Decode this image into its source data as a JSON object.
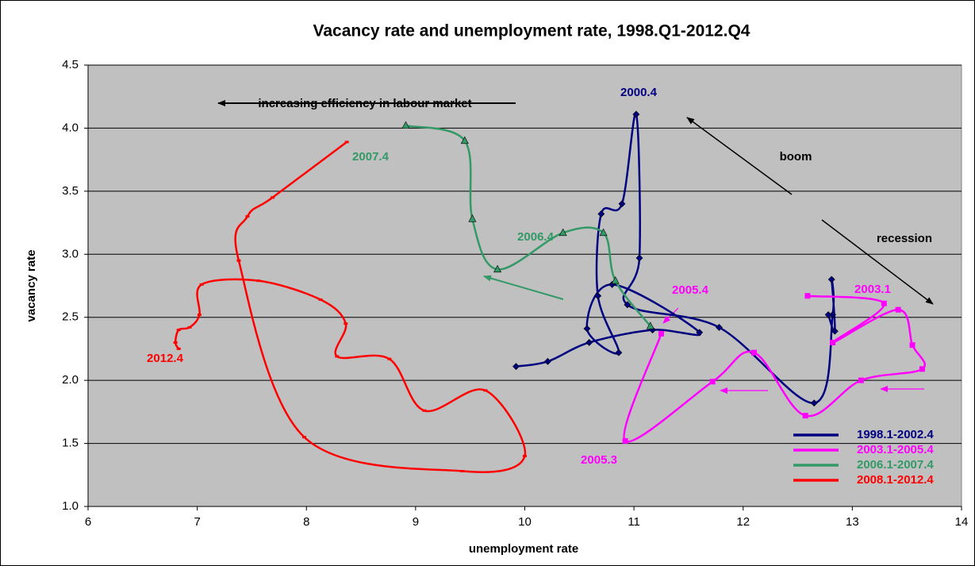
{
  "chart_data": {
    "type": "line",
    "title": "Vacancy rate and unemployment rate, 1998.Q1-2012.Q4",
    "x_label": "unemployment rate",
    "y_label": "vacancy rate",
    "xlim": [
      6,
      14
    ],
    "xticks": [
      6,
      7,
      8,
      9,
      10,
      11,
      12,
      13,
      14
    ],
    "ylim": [
      1,
      4.5
    ],
    "yticks": [
      {
        "value": 1,
        "label": "1.0"
      },
      1.5,
      {
        "value": 2,
        "label": "2.0"
      },
      2.5,
      {
        "value": 3,
        "label": "3.0"
      },
      3.5,
      {
        "value": 4,
        "label": "4.0"
      },
      4.5
    ],
    "grid": true,
    "smooth": true,
    "legend": "lower right",
    "background": "#c0c0c0",
    "series": [
      {
        "name": "1998.1-2002.4",
        "color": "#000080",
        "marker": "diamond",
        "x": [
          9.92,
          10.21,
          10.59,
          11.17,
          11.6,
          10.8,
          10.57,
          10.86,
          10.67,
          10.7,
          10.89,
          11.02,
          11.05,
          10.94,
          11.78,
          12.65,
          12.82,
          12.81,
          12.84,
          12.78
        ],
        "values": [
          2.11,
          2.15,
          2.3,
          2.4,
          2.38,
          2.76,
          2.41,
          2.22,
          2.67,
          3.32,
          3.4,
          4.11,
          2.97,
          2.6,
          2.42,
          1.82,
          2.52,
          2.8,
          2.39,
          2.52
        ]
      },
      {
        "name": "2003.1-2005.4",
        "color": "#ff00ff",
        "marker": "square",
        "x": [
          12.59,
          13.29,
          12.82,
          13.42,
          13.55,
          13.64,
          13.08,
          12.57,
          12.1,
          11.72,
          10.92,
          11.25
        ],
        "values": [
          2.67,
          2.61,
          2.3,
          2.56,
          2.28,
          2.09,
          2.0,
          1.72,
          2.22,
          1.99,
          1.52,
          2.37
        ]
      },
      {
        "name": "2006.1-2007.4",
        "color": "#339966",
        "marker": "triangle",
        "x": [
          11.15,
          10.83,
          10.72,
          10.35,
          9.75,
          9.52,
          9.45,
          8.91
        ],
        "values": [
          2.43,
          2.79,
          3.17,
          3.17,
          2.88,
          3.28,
          3.9,
          4.02
        ]
      },
      {
        "name": "2008.1-2012.4",
        "color": "#ff0000",
        "marker": "dash",
        "x": [
          8.37,
          7.69,
          7.46,
          7.38,
          7.98,
          9.43,
          10.0,
          9.64,
          9.08,
          8.76,
          8.28,
          8.36,
          8.13,
          7.56,
          7.04,
          7.02,
          6.93,
          6.83,
          6.8,
          6.83
        ],
        "values": [
          3.89,
          3.45,
          3.3,
          2.95,
          1.55,
          1.28,
          1.4,
          1.92,
          1.76,
          2.17,
          2.19,
          2.45,
          2.64,
          2.79,
          2.76,
          2.52,
          2.42,
          2.4,
          2.3,
          2.25
        ]
      }
    ],
    "annotations": [
      {
        "text": "increasing efficiency in labour market",
        "color": "#000000"
      },
      {
        "text": "boom",
        "color": "#000000"
      },
      {
        "text": "recession",
        "color": "#000000"
      },
      {
        "text": "2000.4",
        "color": "#000080"
      },
      {
        "text": "2007.4",
        "color": "#339966"
      },
      {
        "text": "2006.4",
        "color": "#339966"
      },
      {
        "text": "2005.4",
        "color": "#ff00ff"
      },
      {
        "text": "2003.1",
        "color": "#ff00ff"
      },
      {
        "text": "2005.3",
        "color": "#ff00ff"
      },
      {
        "text": "2012.4",
        "color": "#ff0000"
      }
    ]
  }
}
